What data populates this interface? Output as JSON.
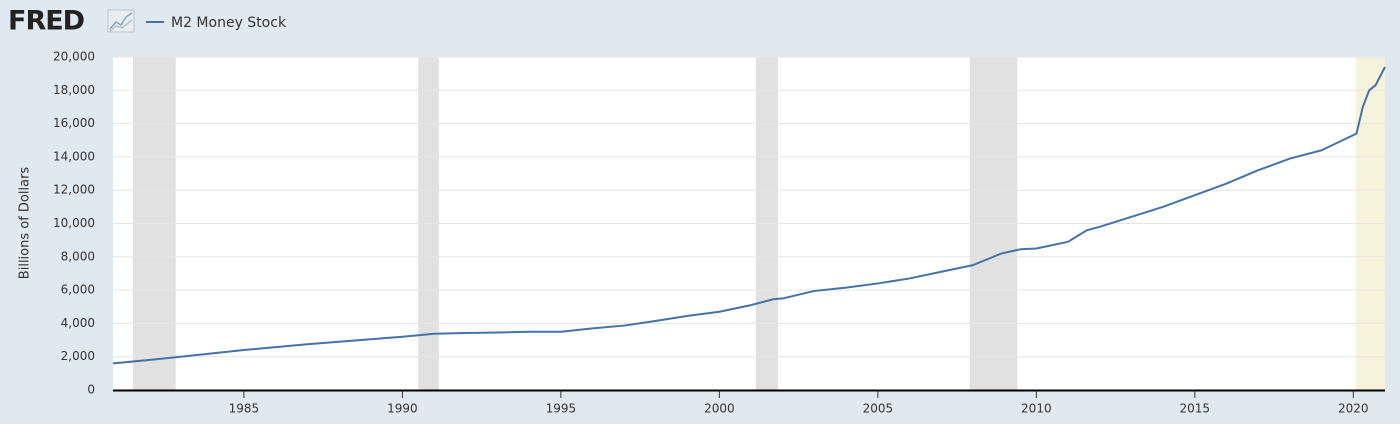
{
  "logo": "FRED",
  "chart_data": {
    "type": "line",
    "y_label": "Billions of Dollars",
    "x": [
      1980.87,
      1982,
      1983,
      1985,
      1987,
      1988,
      1990,
      1991,
      1992,
      1993,
      1994,
      1995,
      1996,
      1997,
      1998,
      1999,
      2000,
      2001,
      2001.7,
      2002,
      2003,
      2004,
      2005,
      2006,
      2007,
      2008,
      2008.9,
      2009.5,
      2010,
      2011,
      2011.6,
      2012,
      2013,
      2014,
      2015,
      2016,
      2017,
      2018,
      2019,
      2020.1,
      2020.3,
      2020.5,
      2020.7,
      2021.0
    ],
    "series": [
      {
        "name": "M2 Money Stock",
        "color": "#4572a7",
        "values": [
          1600,
          1800,
          2000,
          2400,
          2750,
          2900,
          3200,
          3380,
          3420,
          3450,
          3500,
          3500,
          3700,
          3870,
          4150,
          4450,
          4700,
          5100,
          5450,
          5500,
          5950,
          6150,
          6400,
          6700,
          7100,
          7500,
          8200,
          8450,
          8500,
          8900,
          9600,
          9800,
          10400,
          11000,
          11700,
          12400,
          13200,
          13900,
          14400,
          15400,
          17000,
          18000,
          18300,
          19400
        ]
      }
    ],
    "xlim": [
      1980.87,
      2021.0
    ],
    "xticks": [
      1985,
      1990,
      1995,
      2000,
      2005,
      2010,
      2015,
      2020
    ],
    "ylim": [
      0,
      20000
    ],
    "yticks": [
      0,
      {
        "value": 2000,
        "label": "2,000"
      },
      {
        "value": 4000,
        "label": "4,000"
      },
      {
        "value": 6000,
        "label": "6,000"
      },
      {
        "value": 8000,
        "label": "8,000"
      },
      {
        "value": 10000,
        "label": "10,000"
      },
      {
        "value": 12000,
        "label": "12,000"
      },
      {
        "value": 14000,
        "label": "14,000"
      },
      {
        "value": 16000,
        "label": "16,000"
      },
      {
        "value": 18000,
        "label": "18,000"
      },
      {
        "value": 20000,
        "label": "20,000"
      }
    ],
    "grid": true,
    "shading": [
      {
        "start": 1981.5,
        "end": 1982.85,
        "color": "#e1e1e1"
      },
      {
        "start": 1990.5,
        "end": 1991.15,
        "color": "#e1e1e1"
      },
      {
        "start": 2001.15,
        "end": 2001.85,
        "color": "#e1e1e1"
      },
      {
        "start": 2007.9,
        "end": 2009.4,
        "color": "#e1e1e1"
      },
      {
        "start": 2020.08,
        "end": 2021.0,
        "color": "#f5f3dc"
      }
    ]
  }
}
